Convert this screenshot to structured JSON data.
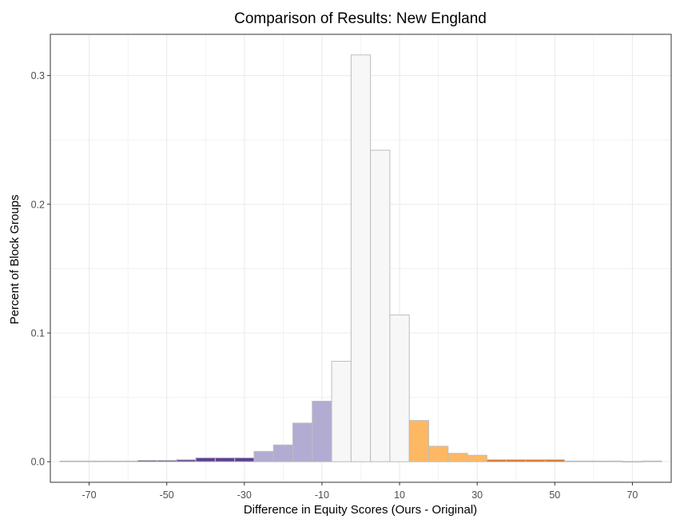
{
  "chart_data": {
    "type": "bar",
    "title": "Comparison of Results: New England",
    "xlabel": "Difference in Equity Scores (Ours - Original)",
    "ylabel": "Percent of Block Groups",
    "xlim": [
      -80,
      80
    ],
    "ylim": [
      -0.016,
      0.332
    ],
    "bin_width": 5,
    "x_ticks": [
      -70,
      -50,
      -30,
      -10,
      10,
      30,
      50,
      70
    ],
    "y_ticks": [
      0.0,
      0.1,
      0.2,
      0.3
    ],
    "x_tick_labels": [
      "-70",
      "-50",
      "-30",
      "-10",
      "10",
      "30",
      "50",
      "70"
    ],
    "y_tick_labels": [
      "0.0",
      "0.1",
      "0.2",
      "0.3"
    ],
    "grid": true,
    "colors": {
      "strong_negative": "#5e3c99",
      "negative": "#b2abd2",
      "neutral": "#f7f7f7",
      "positive": "#fdb863",
      "strong_positive": "#e66101",
      "bar_outline": "#bdbdbd",
      "grid": "#ebebeb",
      "panel_border": "#333333"
    },
    "bins": [
      {
        "center": -75,
        "value": 0.0005,
        "color": "neutral"
      },
      {
        "center": -70,
        "value": 0.0005,
        "color": "neutral"
      },
      {
        "center": -65,
        "value": 0.0005,
        "color": "neutral"
      },
      {
        "center": -60,
        "value": 0.0005,
        "color": "neutral"
      },
      {
        "center": -55,
        "value": 0.001,
        "color": "strong_negative"
      },
      {
        "center": -50,
        "value": 0.001,
        "color": "strong_negative"
      },
      {
        "center": -45,
        "value": 0.0015,
        "color": "strong_negative"
      },
      {
        "center": -40,
        "value": 0.003,
        "color": "strong_negative"
      },
      {
        "center": -35,
        "value": 0.003,
        "color": "strong_negative"
      },
      {
        "center": -30,
        "value": 0.003,
        "color": "strong_negative"
      },
      {
        "center": -25,
        "value": 0.008,
        "color": "negative"
      },
      {
        "center": -20,
        "value": 0.013,
        "color": "negative"
      },
      {
        "center": -15,
        "value": 0.03,
        "color": "negative"
      },
      {
        "center": -10,
        "value": 0.047,
        "color": "negative"
      },
      {
        "center": -5,
        "value": 0.078,
        "color": "neutral"
      },
      {
        "center": 0,
        "value": 0.316,
        "color": "neutral"
      },
      {
        "center": 5,
        "value": 0.242,
        "color": "neutral"
      },
      {
        "center": 10,
        "value": 0.114,
        "color": "neutral"
      },
      {
        "center": 15,
        "value": 0.032,
        "color": "positive"
      },
      {
        "center": 20,
        "value": 0.012,
        "color": "positive"
      },
      {
        "center": 25,
        "value": 0.0065,
        "color": "positive"
      },
      {
        "center": 30,
        "value": 0.005,
        "color": "positive"
      },
      {
        "center": 35,
        "value": 0.0015,
        "color": "strong_positive"
      },
      {
        "center": 40,
        "value": 0.0015,
        "color": "strong_positive"
      },
      {
        "center": 45,
        "value": 0.0015,
        "color": "strong_positive"
      },
      {
        "center": 50,
        "value": 0.0015,
        "color": "strong_positive"
      },
      {
        "center": 55,
        "value": 0.0005,
        "color": "neutral"
      },
      {
        "center": 60,
        "value": 0.0005,
        "color": "neutral"
      },
      {
        "center": 65,
        "value": 0.0005,
        "color": "neutral"
      },
      {
        "center": 70,
        "value": 0.0002,
        "color": "neutral"
      },
      {
        "center": 75,
        "value": 0.0005,
        "color": "neutral"
      }
    ]
  }
}
